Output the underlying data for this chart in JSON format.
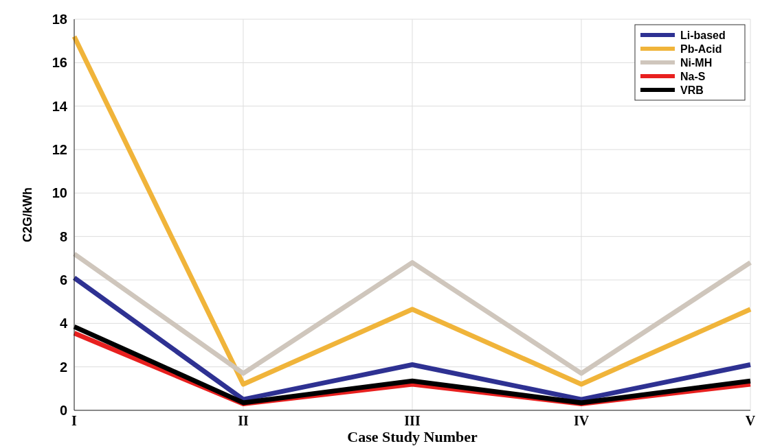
{
  "chart_data": {
    "type": "line",
    "xlabel": "Case Study Number",
    "ylabel": "C2G/kWh",
    "categories": [
      "I",
      "II",
      "III",
      "IV",
      "V"
    ],
    "series": [
      {
        "name": "Li-based",
        "color": "#2e3192",
        "values": [
          6.1,
          0.5,
          2.1,
          0.5,
          2.1
        ]
      },
      {
        "name": "Pb-Acid",
        "color": "#f0b43a",
        "values": [
          17.2,
          1.2,
          4.65,
          1.2,
          4.65
        ]
      },
      {
        "name": "Ni-MH",
        "color": "#cfc6bc",
        "values": [
          7.2,
          1.7,
          6.8,
          1.7,
          6.8
        ]
      },
      {
        "name": "Na-S",
        "color": "#e8201f",
        "values": [
          3.55,
          0.3,
          1.2,
          0.3,
          1.2
        ]
      },
      {
        "name": "VRB",
        "color": "#000000",
        "values": [
          3.85,
          0.35,
          1.35,
          0.35,
          1.35
        ]
      }
    ],
    "ylim": [
      0,
      18
    ],
    "yticks": [
      0,
      2,
      4,
      6,
      8,
      10,
      12,
      14,
      16,
      18
    ],
    "grid": true,
    "legend": "top right",
    "marker": "none",
    "line_style": "solid"
  }
}
